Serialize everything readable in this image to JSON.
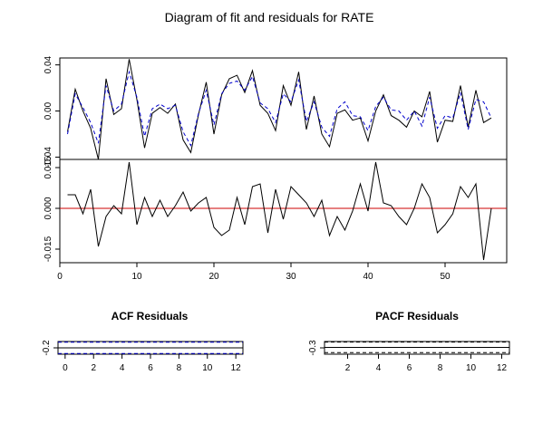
{
  "figure": {
    "title": "Diagram of fit and residuals for RATE"
  },
  "chart_data": [
    {
      "type": "line",
      "title": "",
      "xlabel": "",
      "ylabel": "",
      "x_ticks": [
        10,
        20,
        30,
        40,
        50
      ],
      "xlim": [
        0,
        58
      ],
      "y_ticks": [
        "0.04",
        "0.00",
        "-0.04"
      ],
      "ylim": [
        -0.042,
        0.046
      ],
      "grid": false,
      "x": [
        1,
        2,
        3,
        4,
        5,
        6,
        7,
        8,
        9,
        10,
        11,
        12,
        13,
        14,
        15,
        16,
        17,
        18,
        19,
        20,
        21,
        22,
        23,
        24,
        25,
        26,
        27,
        28,
        29,
        30,
        31,
        32,
        33,
        34,
        35,
        36,
        37,
        38,
        39,
        40,
        41,
        42,
        43,
        44,
        45,
        46,
        47,
        48,
        49,
        50,
        51,
        52,
        53,
        54,
        55,
        56
      ],
      "series": [
        {
          "color": "#000000",
          "dash": "solid",
          "values": [
            -0.018,
            0.019,
            0.0,
            -0.015,
            -0.042,
            0.028,
            -0.003,
            0.002,
            0.045,
            0.01,
            -0.032,
            -0.002,
            0.003,
            -0.002,
            0.006,
            -0.025,
            -0.036,
            -0.003,
            0.025,
            -0.02,
            0.014,
            0.028,
            0.031,
            0.016,
            0.035,
            0.005,
            -0.002,
            -0.017,
            0.022,
            0.005,
            0.034,
            -0.016,
            0.013,
            -0.02,
            -0.031,
            -0.002,
            0.001,
            -0.008,
            -0.006,
            -0.026,
            0.0,
            0.014,
            -0.004,
            -0.008,
            -0.014,
            0.0,
            -0.005,
            0.017,
            -0.027,
            -0.008,
            -0.009,
            0.022,
            -0.014,
            0.018,
            -0.01,
            -0.006
          ]
        },
        {
          "color": "#0000cc",
          "dash": "dashed",
          "values": [
            -0.02,
            0.015,
            0.003,
            -0.01,
            -0.028,
            0.022,
            0.0,
            0.006,
            0.034,
            0.012,
            -0.022,
            0.002,
            0.006,
            0.002,
            0.005,
            -0.018,
            -0.03,
            -0.002,
            0.018,
            -0.012,
            0.015,
            0.024,
            0.026,
            0.018,
            0.03,
            0.007,
            0.002,
            -0.01,
            0.015,
            0.008,
            0.027,
            -0.009,
            0.008,
            -0.014,
            -0.022,
            0.002,
            0.008,
            -0.004,
            -0.005,
            -0.017,
            0.004,
            0.012,
            0.001,
            0.0,
            -0.008,
            0.0,
            -0.013,
            0.012,
            -0.015,
            -0.004,
            -0.006,
            0.016,
            -0.016,
            0.01,
            0.008,
            -0.006
          ]
        }
      ]
    },
    {
      "type": "line",
      "title": "",
      "xlabel": "",
      "ylabel": "",
      "x_ticks": [
        0,
        10,
        20,
        30,
        40,
        50
      ],
      "xlim": [
        0,
        58
      ],
      "y_ticks": [
        "0.015",
        "0.000",
        "-0.015"
      ],
      "ylim": [
        -0.02,
        0.018
      ],
      "grid": false,
      "zero_line_color": "#cc0000",
      "x": [
        1,
        2,
        3,
        4,
        5,
        6,
        7,
        8,
        9,
        10,
        11,
        12,
        13,
        14,
        15,
        16,
        17,
        18,
        19,
        20,
        21,
        22,
        23,
        24,
        25,
        26,
        27,
        28,
        29,
        30,
        31,
        32,
        33,
        34,
        35,
        36,
        37,
        38,
        39,
        40,
        41,
        42,
        43,
        44,
        45,
        46,
        47,
        48,
        49,
        50,
        51,
        52,
        53,
        54,
        55,
        56
      ],
      "series": [
        {
          "color": "#000000",
          "dash": "solid",
          "values": [
            0.005,
            0.005,
            -0.002,
            0.007,
            -0.014,
            -0.003,
            0.001,
            -0.002,
            0.017,
            -0.006,
            0.004,
            -0.003,
            0.003,
            -0.003,
            0.001,
            0.006,
            -0.001,
            0.002,
            0.004,
            -0.007,
            -0.01,
            -0.008,
            0.004,
            -0.006,
            0.008,
            0.009,
            -0.009,
            0.007,
            -0.004,
            0.008,
            0.005,
            0.002,
            -0.003,
            0.003,
            -0.01,
            -0.003,
            -0.008,
            -0.001,
            0.009,
            -0.001,
            0.017,
            0.002,
            0.001,
            -0.003,
            -0.006,
            0.0,
            0.009,
            0.004,
            -0.009,
            -0.006,
            -0.002,
            0.008,
            0.004,
            0.009,
            -0.019,
            0.0
          ]
        }
      ]
    },
    {
      "type": "bar",
      "title": "ACF Residuals",
      "xlabel": "",
      "ylabel": "",
      "x_ticks": [
        0,
        2,
        4,
        6,
        8,
        10,
        12
      ],
      "xlim": [
        -0.5,
        12.5
      ],
      "y_ticks": [
        "-0.2"
      ],
      "ylim": [
        -0.3,
        0.3
      ],
      "grid": false,
      "confidence_band_color": "#0000cc",
      "values": []
    },
    {
      "type": "bar",
      "title": "PACF Residuals",
      "xlabel": "",
      "ylabel": "",
      "x_ticks": [
        2,
        4,
        6,
        8,
        10,
        12
      ],
      "xlim": [
        0.5,
        12.5
      ],
      "y_ticks": [
        "-0.3"
      ],
      "ylim": [
        -0.35,
        0.3
      ],
      "grid": false,
      "confidence_band_color": "#000000",
      "values": []
    }
  ]
}
